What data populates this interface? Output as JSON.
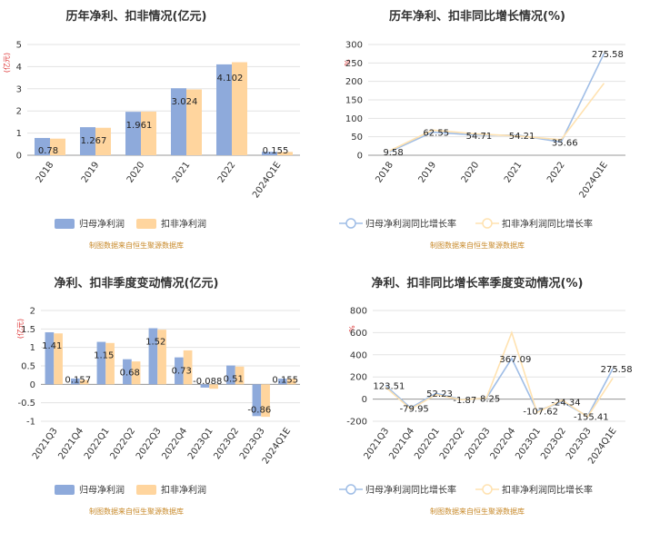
{
  "colors": {
    "series1": "#8eaadb",
    "series2": "#ffd59e",
    "line1": "#9fbde6",
    "line2": "#ffe2b0"
  },
  "source_note": "制图数据来自恒生聚源数据库",
  "chart_data": [
    {
      "type": "bar",
      "title": "历年净利、扣非情况(亿元)",
      "ylabel": "(亿元)",
      "ylim": [
        0,
        5
      ],
      "yticks": [
        0,
        1,
        2,
        3,
        4,
        5
      ],
      "categories": [
        "2018",
        "2019",
        "2020",
        "2021",
        "2022",
        "2024Q1E"
      ],
      "series": [
        {
          "name": "归母净利润",
          "values": [
            0.78,
            1.267,
            1.961,
            3.024,
            4.102,
            0.155
          ]
        },
        {
          "name": "扣非净利润",
          "values": [
            0.75,
            1.24,
            1.97,
            2.97,
            4.2,
            0.15
          ]
        }
      ],
      "data_labels": [
        "0.78",
        "1.267",
        "1.961",
        "3.024",
        "4.102",
        "0.155"
      ],
      "legend": "bottom",
      "grid": true
    },
    {
      "type": "line",
      "title": "历年净利、扣非同比增长情况(%)",
      "ylabel": "%",
      "ylim": [
        0,
        300
      ],
      "yticks": [
        0,
        50,
        100,
        150,
        200,
        250,
        300
      ],
      "categories": [
        "2018",
        "2019",
        "2020",
        "2021",
        "2022",
        "2024Q1E"
      ],
      "series": [
        {
          "name": "归母净利润同比增长率",
          "values": [
            9.58,
            62.55,
            54.71,
            54.21,
            35.66,
            275.58
          ]
        },
        {
          "name": "扣非净利润同比增长率",
          "values": [
            12,
            68,
            58,
            52,
            42,
            195
          ]
        }
      ],
      "data_labels": [
        "9.58",
        "62.55",
        "54.71",
        "54.21",
        "35.66",
        "275.58"
      ],
      "legend": "bottom",
      "grid": true
    },
    {
      "type": "bar",
      "title": "净利、扣非季度变动情况(亿元)",
      "ylabel": "(亿元)",
      "ylim": [
        -1,
        2
      ],
      "yticks": [
        -1,
        -0.5,
        0,
        0.5,
        1,
        1.5,
        2
      ],
      "categories": [
        "2021Q3",
        "2021Q4",
        "2022Q1",
        "2022Q2",
        "2022Q3",
        "2022Q4",
        "2023Q1",
        "2023Q2",
        "2023Q3",
        "2024Q1E"
      ],
      "series": [
        {
          "name": "归母净利润",
          "values": [
            1.41,
            0.157,
            1.15,
            0.68,
            1.52,
            0.73,
            -0.088,
            0.51,
            -0.86,
            0.155
          ]
        },
        {
          "name": "扣非净利润",
          "values": [
            1.38,
            0.12,
            1.12,
            0.62,
            1.48,
            0.92,
            -0.12,
            0.48,
            -0.88,
            0.15
          ]
        }
      ],
      "data_labels": [
        "1.41",
        "0.157",
        "1.15",
        "0.68",
        "1.52",
        "0.73",
        "-0.088",
        "0.51",
        "-0.86",
        "0.155"
      ],
      "legend": "bottom",
      "grid": true
    },
    {
      "type": "line",
      "title": "净利、扣非同比增长率季度变动情况(%)",
      "ylabel": "%",
      "ylim": [
        -200,
        800
      ],
      "yticks": [
        -200,
        0,
        200,
        400,
        600,
        800
      ],
      "categories": [
        "2021Q3",
        "2021Q4",
        "2022Q1",
        "2022Q2",
        "2022Q3",
        "2022Q4",
        "2023Q1",
        "2023Q2",
        "2023Q3",
        "2024Q1E"
      ],
      "series": [
        {
          "name": "归母净利润同比增长率",
          "values": [
            123.51,
            -79.95,
            52.23,
            -1.87,
            8.25,
            367.09,
            -107.62,
            -24.34,
            -155.41,
            275.58
          ]
        },
        {
          "name": "扣非净利润同比增长率",
          "values": [
            110,
            -90,
            40,
            -5,
            10,
            600,
            -120,
            -10,
            -160,
            190
          ]
        }
      ],
      "data_labels": [
        "123.51",
        "-79.95",
        "52.23",
        "-1.87",
        "8.25",
        "367.09",
        "-107.62",
        "-24.34",
        "-155.41",
        "275.58"
      ],
      "legend": "bottom",
      "grid": true
    }
  ]
}
